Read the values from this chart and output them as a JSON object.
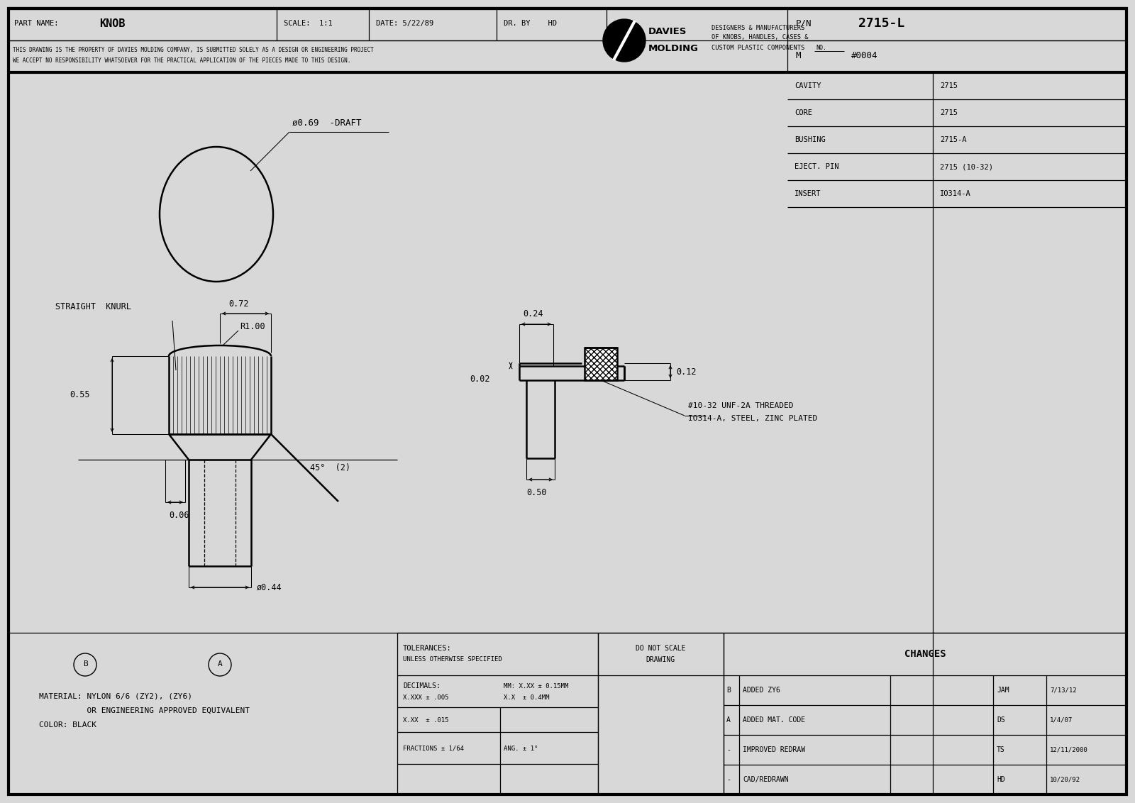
{
  "bg_color": "#d8d8d8",
  "paper_color": "#ffffff",
  "lc": "#000000",
  "header": {
    "part_name": "KNOB",
    "scale": "1:1",
    "date": "5/22/89",
    "dr_by": "HD",
    "disc1": "THIS DRAWING IS THE PROPERTY OF DAVIES MOLDING COMPANY, IS SUBMITTED SOLELY AS A DESIGN OR ENGINEERING PROJECT",
    "disc2": "WE ACCEPT NO RESPONSIBILITY WHATSOEVER FOR THE PRACTICAL APPLICATION OF THE PIECES MADE TO THIS DESIGN.",
    "desc1": "DESIGNERS & MANUFACTURERS",
    "desc2": "OF KNOBS, HANDLES, CASES &",
    "desc3": "CUSTOM PLASTIC COMPONENTS",
    "pn": "2715-L",
    "mno": "#0004",
    "rows": [
      [
        "CAVITY",
        "2715"
      ],
      [
        "CORE",
        "2715"
      ],
      [
        "BUSHING",
        "2715-A"
      ],
      [
        "EJECT. PIN",
        "2715 (10-32)"
      ],
      [
        "INSERT",
        "IO314-A"
      ]
    ]
  },
  "drawing": {
    "top_view_label": "ø0.69  -DRAFT",
    "knurl_label": "STRAIGHT  KNURL",
    "r100": "R1.00",
    "d072": "0.72",
    "d055": "0.55",
    "d006": "0.06",
    "d044": "ø0.44",
    "d45": "45°  (2)",
    "d024": "0.24",
    "d012": "0.12",
    "d002": "0.02",
    "d050": "0.50",
    "thread1": "#10-32 UNF-2A THREADED",
    "thread2": "IO314-A, STEEL, ZINC PLATED"
  },
  "footer": {
    "mat1": "MATERIAL: NYLON 6/6 (ZY2), (ZY6)",
    "mat2": "          OR ENGINEERING APPROVED EQUIVALENT",
    "mat3": "COLOR: BLACK",
    "tol1": "TOLERANCES:",
    "tol2": "UNLESS OTHERWISE SPECIFIED",
    "dec_lbl": "DECIMALS:",
    "dec_xxx": "X.XXX ± .005",
    "dec_xx": "X.XX  ± .015",
    "mm_xx": "MM: X.XX ± 0.15MM",
    "mm_x": "X.X  ± 0.4MM",
    "frac": "FRACTIONS ± 1/64",
    "ang": "ANG. ± 1°",
    "dns1": "DO NOT SCALE",
    "dns2": "DRAWING",
    "chg_hdr": "CHANGES",
    "chg_rows": [
      [
        "B",
        "ADDED ZY6",
        "JAM",
        "7/13/12"
      ],
      [
        "A",
        "ADDED MAT. CODE",
        "DS",
        "1/4/07"
      ],
      [
        "-",
        "IMPROVED REDRAW",
        "TS",
        "12/11/2000"
      ],
      [
        "-",
        "CAD/REDRAWN",
        "HD",
        "10/20/92"
      ]
    ]
  }
}
